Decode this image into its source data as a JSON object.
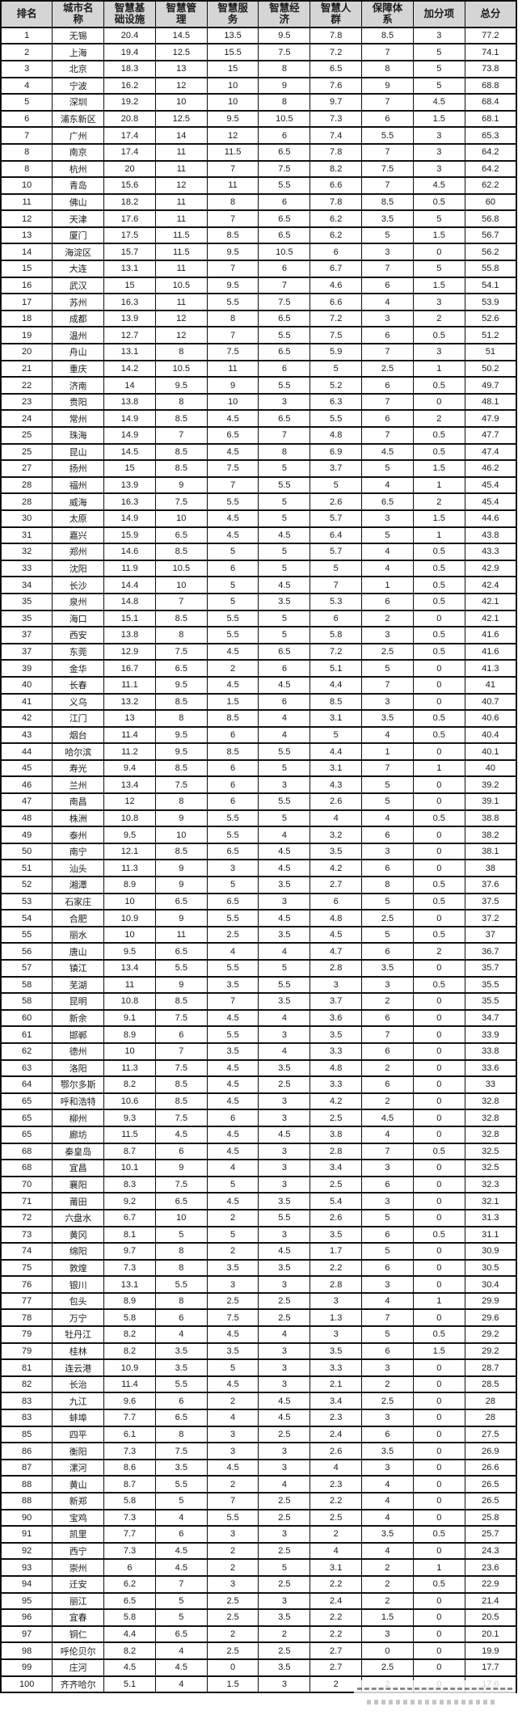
{
  "table": {
    "columns": [
      "排名",
      "城市名\n称",
      "智慧基\n础设施",
      "智慧管\n理",
      "智慧服\n务",
      "智慧经\n济",
      "智慧人\n群",
      "保障体\n系",
      "加分项",
      "总分"
    ],
    "rows": [
      [
        "1",
        "无锡",
        "20.4",
        "14.5",
        "13.5",
        "9.5",
        "7.8",
        "8.5",
        "3",
        "77.2"
      ],
      [
        "2",
        "上海",
        "19.4",
        "12.5",
        "15.5",
        "7.5",
        "7.2",
        "7",
        "5",
        "74.1"
      ],
      [
        "3",
        "北京",
        "18.3",
        "13",
        "15",
        "8",
        "6.5",
        "8",
        "5",
        "73.8"
      ],
      [
        "4",
        "宁波",
        "16.2",
        "12",
        "10",
        "9",
        "7.6",
        "9",
        "5",
        "68.8"
      ],
      [
        "5",
        "深圳",
        "19.2",
        "10",
        "10",
        "8",
        "9.7",
        "7",
        "4.5",
        "68.4"
      ],
      [
        "6",
        "浦东新区",
        "20.8",
        "12.5",
        "9.5",
        "10.5",
        "7.3",
        "6",
        "1.5",
        "68.1"
      ],
      [
        "7",
        "广州",
        "17.4",
        "14",
        "12",
        "6",
        "7.4",
        "5.5",
        "3",
        "65.3"
      ],
      [
        "8",
        "南京",
        "17.4",
        "11",
        "11.5",
        "6.5",
        "7.8",
        "7",
        "3",
        "64.2"
      ],
      [
        "8",
        "杭州",
        "20",
        "11",
        "7",
        "7.5",
        "8.2",
        "7.5",
        "3",
        "64.2"
      ],
      [
        "10",
        "青岛",
        "15.6",
        "12",
        "11",
        "5.5",
        "6.6",
        "7",
        "4.5",
        "62.2"
      ],
      [
        "11",
        "佛山",
        "18.2",
        "11",
        "8",
        "6",
        "7.8",
        "8.5",
        "0.5",
        "60"
      ],
      [
        "12",
        "天津",
        "17.6",
        "11",
        "7",
        "6.5",
        "6.2",
        "3.5",
        "5",
        "56.8"
      ],
      [
        "13",
        "厦门",
        "17.5",
        "11.5",
        "8.5",
        "6.5",
        "6.2",
        "5",
        "1.5",
        "56.7"
      ],
      [
        "14",
        "海淀区",
        "15.7",
        "11.5",
        "9.5",
        "10.5",
        "6",
        "3",
        "0",
        "56.2"
      ],
      [
        "15",
        "大连",
        "13.1",
        "11",
        "7",
        "6",
        "6.7",
        "7",
        "5",
        "55.8"
      ],
      [
        "16",
        "武汉",
        "15",
        "10.5",
        "9.5",
        "7",
        "4.6",
        "6",
        "1.5",
        "54.1"
      ],
      [
        "17",
        "苏州",
        "16.3",
        "11",
        "5.5",
        "7.5",
        "6.6",
        "4",
        "3",
        "53.9"
      ],
      [
        "18",
        "成都",
        "13.9",
        "12",
        "8",
        "6.5",
        "7.2",
        "3",
        "2",
        "52.6"
      ],
      [
        "19",
        "温州",
        "12.7",
        "12",
        "7",
        "5.5",
        "7.5",
        "6",
        "0.5",
        "51.2"
      ],
      [
        "20",
        "舟山",
        "13.1",
        "8",
        "7.5",
        "6.5",
        "5.9",
        "7",
        "3",
        "51"
      ],
      [
        "21",
        "重庆",
        "14.2",
        "10.5",
        "11",
        "6",
        "5",
        "2.5",
        "1",
        "50.2"
      ],
      [
        "22",
        "济南",
        "14",
        "9.5",
        "9",
        "5.5",
        "5.2",
        "6",
        "0.5",
        "49.7"
      ],
      [
        "23",
        "贵阳",
        "13.8",
        "8",
        "10",
        "3",
        "6.3",
        "7",
        "0",
        "48.1"
      ],
      [
        "24",
        "常州",
        "14.9",
        "8.5",
        "4.5",
        "6.5",
        "5.5",
        "6",
        "2",
        "47.9"
      ],
      [
        "25",
        "珠海",
        "14.9",
        "7",
        "6.5",
        "7",
        "4.8",
        "7",
        "0.5",
        "47.7"
      ],
      [
        "25",
        "昆山",
        "14.5",
        "8.5",
        "4.5",
        "8",
        "6.9",
        "4.5",
        "0.5",
        "47.4"
      ],
      [
        "27",
        "扬州",
        "15",
        "8.5",
        "7.5",
        "5",
        "3.7",
        "5",
        "1.5",
        "46.2"
      ],
      [
        "28",
        "福州",
        "13.9",
        "9",
        "7",
        "5.5",
        "5",
        "4",
        "1",
        "45.4"
      ],
      [
        "28",
        "威海",
        "16.3",
        "7.5",
        "5.5",
        "5",
        "2.6",
        "6.5",
        "2",
        "45.4"
      ],
      [
        "30",
        "太原",
        "14.9",
        "10",
        "4.5",
        "5",
        "5.7",
        "3",
        "1.5",
        "44.6"
      ],
      [
        "31",
        "嘉兴",
        "15.9",
        "6.5",
        "4.5",
        "4.5",
        "6.4",
        "5",
        "1",
        "43.8"
      ],
      [
        "32",
        "郑州",
        "14.6",
        "8.5",
        "5",
        "5",
        "5.7",
        "4",
        "0.5",
        "43.3"
      ],
      [
        "33",
        "沈阳",
        "11.9",
        "10.5",
        "6",
        "5",
        "5",
        "4",
        "0.5",
        "42.9"
      ],
      [
        "34",
        "长沙",
        "14.4",
        "10",
        "5",
        "4.5",
        "7",
        "1",
        "0.5",
        "42.4"
      ],
      [
        "35",
        "泉州",
        "14.8",
        "7",
        "5",
        "3.5",
        "5.3",
        "6",
        "0.5",
        "42.1"
      ],
      [
        "35",
        "海口",
        "15.1",
        "8.5",
        "5.5",
        "5",
        "6",
        "2",
        "0",
        "42.1"
      ],
      [
        "37",
        "西安",
        "13.8",
        "8",
        "5.5",
        "5",
        "5.8",
        "3",
        "0.5",
        "41.6"
      ],
      [
        "37",
        "东莞",
        "12.9",
        "7.5",
        "4.5",
        "6.5",
        "7.2",
        "2.5",
        "0.5",
        "41.6"
      ],
      [
        "39",
        "金华",
        "16.7",
        "6.5",
        "2",
        "6",
        "5.1",
        "5",
        "0",
        "41.3"
      ],
      [
        "40",
        "长春",
        "11.1",
        "9.5",
        "4.5",
        "4.5",
        "4.4",
        "7",
        "0",
        "41"
      ],
      [
        "41",
        "义乌",
        "13.2",
        "8.5",
        "1.5",
        "6",
        "8.5",
        "3",
        "0",
        "40.7"
      ],
      [
        "42",
        "江门",
        "13",
        "8",
        "8.5",
        "4",
        "3.1",
        "3.5",
        "0.5",
        "40.6"
      ],
      [
        "43",
        "烟台",
        "11.4",
        "9.5",
        "6",
        "4",
        "5",
        "4",
        "0.5",
        "40.4"
      ],
      [
        "44",
        "哈尔滨",
        "11.2",
        "9.5",
        "8.5",
        "5.5",
        "4.4",
        "1",
        "0",
        "40.1"
      ],
      [
        "45",
        "寿光",
        "9.4",
        "8.5",
        "6",
        "5",
        "3.1",
        "7",
        "1",
        "40"
      ],
      [
        "46",
        "兰州",
        "13.4",
        "7.5",
        "6",
        "3",
        "4.3",
        "5",
        "0",
        "39.2"
      ],
      [
        "47",
        "南昌",
        "12",
        "8",
        "6",
        "5.5",
        "2.6",
        "5",
        "0",
        "39.1"
      ],
      [
        "48",
        "株洲",
        "10.8",
        "9",
        "5.5",
        "5",
        "4",
        "4",
        "0.5",
        "38.8"
      ],
      [
        "49",
        "泰州",
        "9.5",
        "10",
        "5.5",
        "4",
        "3.2",
        "6",
        "0",
        "38.2"
      ],
      [
        "50",
        "南宁",
        "12.1",
        "8.5",
        "6.5",
        "4.5",
        "3.5",
        "3",
        "0",
        "38.1"
      ],
      [
        "51",
        "汕头",
        "11.3",
        "9",
        "3",
        "4.5",
        "4.2",
        "6",
        "0",
        "38"
      ],
      [
        "52",
        "湘潭",
        "8.9",
        "9",
        "5",
        "3.5",
        "2.7",
        "8",
        "0.5",
        "37.6"
      ],
      [
        "53",
        "石家庄",
        "10",
        "6.5",
        "6.5",
        "3",
        "6",
        "5",
        "0.5",
        "37.5"
      ],
      [
        "54",
        "合肥",
        "10.9",
        "9",
        "5.5",
        "4.5",
        "4.8",
        "2.5",
        "0",
        "37.2"
      ],
      [
        "55",
        "丽水",
        "10",
        "11",
        "2.5",
        "3.5",
        "4.5",
        "5",
        "0.5",
        "37"
      ],
      [
        "56",
        "唐山",
        "9.5",
        "6.5",
        "4",
        "4",
        "4.7",
        "6",
        "2",
        "36.7"
      ],
      [
        "57",
        "镇江",
        "13.4",
        "5.5",
        "5.5",
        "5",
        "2.8",
        "3.5",
        "0",
        "35.7"
      ],
      [
        "58",
        "芜湖",
        "11",
        "9",
        "3.5",
        "5.5",
        "3",
        "3",
        "0.5",
        "35.5"
      ],
      [
        "58",
        "昆明",
        "10.8",
        "8.5",
        "7",
        "3.5",
        "3.7",
        "2",
        "0",
        "35.5"
      ],
      [
        "60",
        "新余",
        "9.1",
        "7.5",
        "4.5",
        "4",
        "3.6",
        "6",
        "0",
        "34.7"
      ],
      [
        "61",
        "邯郸",
        "8.9",
        "6",
        "5.5",
        "3",
        "3.5",
        "7",
        "0",
        "33.9"
      ],
      [
        "62",
        "德州",
        "10",
        "7",
        "3.5",
        "4",
        "3.3",
        "6",
        "0",
        "33.8"
      ],
      [
        "63",
        "洛阳",
        "11.3",
        "7.5",
        "4.5",
        "3.5",
        "4.8",
        "2",
        "0",
        "33.6"
      ],
      [
        "64",
        "鄂尔多斯",
        "8.2",
        "8.5",
        "4.5",
        "2.5",
        "3.3",
        "6",
        "0",
        "33"
      ],
      [
        "65",
        "呼和浩特",
        "10.6",
        "8.5",
        "4.5",
        "3",
        "4.2",
        "2",
        "0",
        "32.8"
      ],
      [
        "65",
        "柳州",
        "9.3",
        "7.5",
        "6",
        "3",
        "2.5",
        "4.5",
        "0",
        "32.8"
      ],
      [
        "65",
        "廊坊",
        "11.5",
        "4.5",
        "4.5",
        "4.5",
        "3.8",
        "4",
        "0",
        "32.8"
      ],
      [
        "68",
        "秦皇岛",
        "8.7",
        "6",
        "4.5",
        "3",
        "2.8",
        "7",
        "0.5",
        "32.5"
      ],
      [
        "68",
        "宜昌",
        "10.1",
        "9",
        "4",
        "3",
        "3.4",
        "3",
        "0",
        "32.5"
      ],
      [
        "70",
        "襄阳",
        "8.3",
        "7.5",
        "5",
        "3",
        "2.5",
        "6",
        "0",
        "32.3"
      ],
      [
        "71",
        "莆田",
        "9.2",
        "6.5",
        "4.5",
        "3.5",
        "5.4",
        "3",
        "0",
        "32.1"
      ],
      [
        "72",
        "六盘水",
        "6.7",
        "10",
        "2",
        "5.5",
        "2.6",
        "5",
        "0",
        "31.3"
      ],
      [
        "73",
        "黄冈",
        "8.1",
        "5",
        "5",
        "3",
        "3.5",
        "6",
        "0.5",
        "31.1"
      ],
      [
        "74",
        "绵阳",
        "9.7",
        "8",
        "2",
        "4.5",
        "1.7",
        "5",
        "0",
        "30.9"
      ],
      [
        "75",
        "敦煌",
        "7.3",
        "8",
        "3.5",
        "3.5",
        "2.2",
        "6",
        "0",
        "30.5"
      ],
      [
        "76",
        "银川",
        "13.1",
        "5.5",
        "3",
        "3",
        "2.8",
        "3",
        "0",
        "30.4"
      ],
      [
        "77",
        "包头",
        "8.9",
        "8",
        "2.5",
        "2.5",
        "3",
        "4",
        "1",
        "29.9"
      ],
      [
        "78",
        "万宁",
        "5.8",
        "6",
        "7.5",
        "2.5",
        "1.3",
        "7",
        "0",
        "29.6"
      ],
      [
        "79",
        "牡丹江",
        "8.2",
        "4",
        "4.5",
        "4",
        "3",
        "5",
        "0.5",
        "29.2"
      ],
      [
        "79",
        "桂林",
        "8.2",
        "3.5",
        "3.5",
        "3",
        "3.5",
        "6",
        "1.5",
        "29.2"
      ],
      [
        "81",
        "连云港",
        "10.9",
        "3.5",
        "5",
        "3",
        "3.3",
        "3",
        "0",
        "28.7"
      ],
      [
        "82",
        "长治",
        "11.4",
        "5.5",
        "4.5",
        "3",
        "2.1",
        "2",
        "0",
        "28.5"
      ],
      [
        "83",
        "九江",
        "9.6",
        "6",
        "2",
        "4.5",
        "3.4",
        "2.5",
        "0",
        "28"
      ],
      [
        "83",
        "蚌埠",
        "7.7",
        "6.5",
        "4",
        "4.5",
        "2.3",
        "3",
        "0",
        "28"
      ],
      [
        "85",
        "四平",
        "6.1",
        "8",
        "3",
        "2.5",
        "2.4",
        "6",
        "0",
        "27.5"
      ],
      [
        "86",
        "衡阳",
        "7.3",
        "7.5",
        "3",
        "3",
        "2.6",
        "3.5",
        "0",
        "26.9"
      ],
      [
        "87",
        "漯河",
        "8.6",
        "3.5",
        "4.5",
        "3",
        "4",
        "3",
        "0",
        "26.6"
      ],
      [
        "88",
        "黄山",
        "8.7",
        "5.5",
        "2",
        "4",
        "2.3",
        "4",
        "0",
        "26.5"
      ],
      [
        "88",
        "新郑",
        "5.8",
        "5",
        "7",
        "2.5",
        "2.2",
        "4",
        "0",
        "26.5"
      ],
      [
        "90",
        "宝鸡",
        "7.3",
        "4",
        "5.5",
        "2.5",
        "2.5",
        "4",
        "0",
        "25.8"
      ],
      [
        "91",
        "凯里",
        "7.7",
        "6",
        "3",
        "3",
        "2",
        "3.5",
        "0.5",
        "25.7"
      ],
      [
        "92",
        "西宁",
        "7.3",
        "4.5",
        "2",
        "2.5",
        "4",
        "4",
        "0",
        "24.3"
      ],
      [
        "93",
        "崇州",
        "6",
        "4.5",
        "2",
        "5",
        "3.1",
        "2",
        "1",
        "23.6"
      ],
      [
        "94",
        "迁安",
        "6.2",
        "7",
        "3",
        "2.5",
        "2.2",
        "2",
        "0.5",
        "22.9"
      ],
      [
        "95",
        "丽江",
        "6.5",
        "5",
        "2.5",
        "3",
        "2.4",
        "2",
        "0",
        "21.4"
      ],
      [
        "96",
        "宜春",
        "5.8",
        "5",
        "2.5",
        "3.5",
        "2.2",
        "1.5",
        "0",
        "20.5"
      ],
      [
        "97",
        "铜仁",
        "4.4",
        "6.5",
        "2",
        "2",
        "2.2",
        "3",
        "0",
        "20.1"
      ],
      [
        "98",
        "呼伦贝尔",
        "8.2",
        "4",
        "2.5",
        "2.5",
        "2.7",
        "0",
        "0",
        "19.9"
      ],
      [
        "99",
        "庄河",
        "4.5",
        "4.5",
        "0",
        "3.5",
        "2.7",
        "2.5",
        "0",
        "17.7"
      ],
      [
        "100",
        "齐齐哈尔",
        "5.1",
        "4",
        "1.5",
        "3",
        "2",
        "2",
        "0",
        "17.6"
      ]
    ]
  },
  "colors": {
    "header_bg": "#d5d5d5",
    "border": "#0f0f0f",
    "row_bg": "#ffffff",
    "text": "#1b1b1b"
  }
}
